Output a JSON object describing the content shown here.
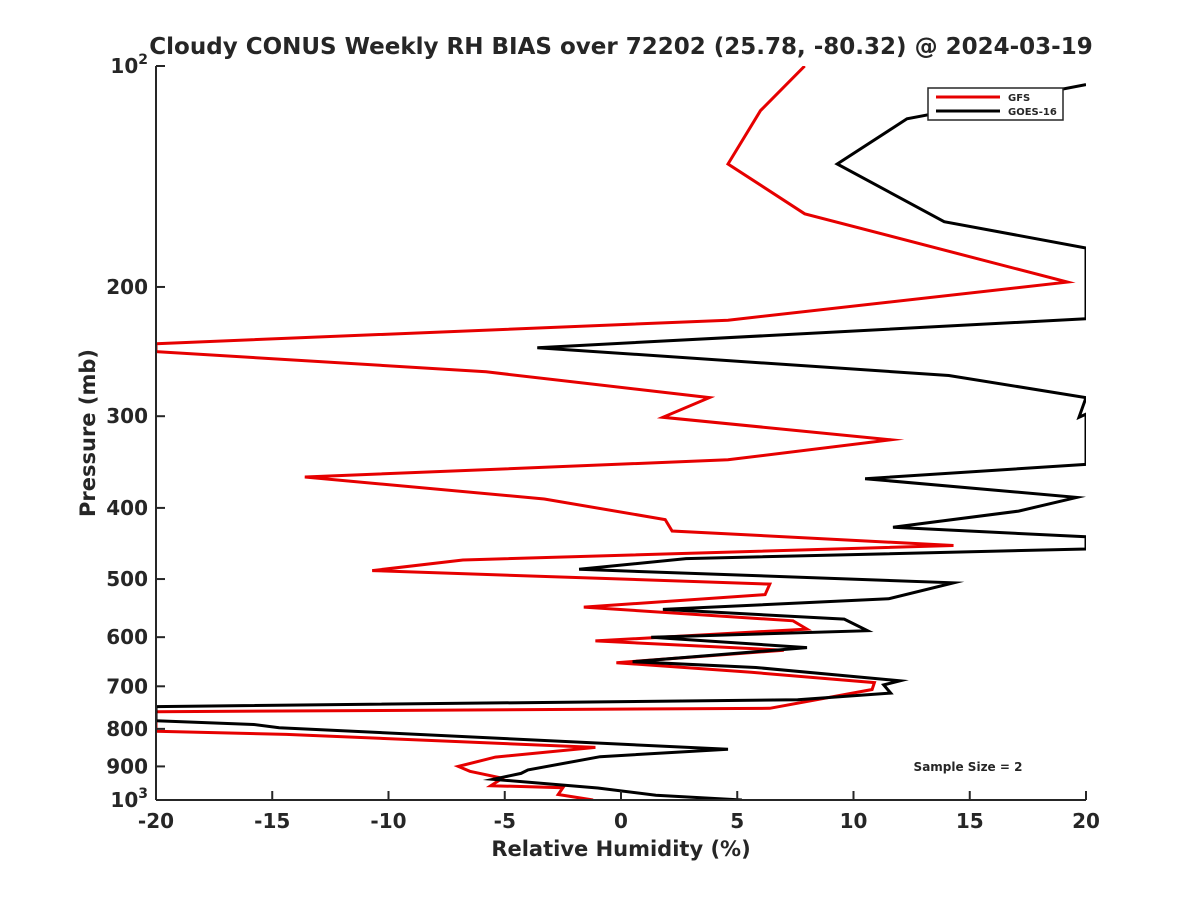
{
  "chart_data": {
    "type": "line",
    "title": "Cloudy CONUS Weekly RH BIAS over 72202 (25.78, -80.32) @ 2024-03-19",
    "xlabel": "Relative Humidity (%)",
    "ylabel": "Pressure (mb)",
    "xlim": [
      -20,
      20
    ],
    "ylim": [
      100,
      1000
    ],
    "y_scale": "log",
    "y_reversed": true,
    "x_ticks": [
      -20,
      -15,
      -10,
      -5,
      0,
      5,
      10,
      15,
      20
    ],
    "y_ticks": [
      {
        "value": 100,
        "base": "10",
        "exp": "2"
      },
      {
        "value": 200,
        "label": "200"
      },
      {
        "value": 300,
        "label": "300"
      },
      {
        "value": 400,
        "label": "400"
      },
      {
        "value": 500,
        "label": "500"
      },
      {
        "value": 600,
        "label": "600"
      },
      {
        "value": 700,
        "label": "700"
      },
      {
        "value": 800,
        "label": "800"
      },
      {
        "value": 900,
        "label": "900"
      },
      {
        "value": 1000,
        "base": "10",
        "exp": "3"
      }
    ],
    "grid": false,
    "legend_position": "top-right",
    "annotation": "Sample Size = 2",
    "series": [
      {
        "name": "GFS",
        "color": "#e60000",
        "points": [
          [
            7.9,
            100
          ],
          [
            6.0,
            115
          ],
          [
            4.6,
            136
          ],
          [
            7.9,
            159
          ],
          [
            19.2,
            197
          ],
          [
            4.6,
            222
          ],
          [
            -20.0,
            239
          ],
          [
            -20.0,
            245
          ],
          [
            -5.8,
            261
          ],
          [
            3.8,
            283
          ],
          [
            1.8,
            301
          ],
          [
            11.6,
            323
          ],
          [
            4.6,
            344
          ],
          [
            -13.6,
            363
          ],
          [
            -3.3,
            389
          ],
          [
            1.9,
            415
          ],
          [
            2.2,
            430
          ],
          [
            14.3,
            450
          ],
          [
            -6.8,
            471
          ],
          [
            -10.7,
            487
          ],
          [
            6.4,
            508
          ],
          [
            6.2,
            525
          ],
          [
            -1.6,
            546
          ],
          [
            7.4,
            570
          ],
          [
            8.0,
            585
          ],
          [
            -1.1,
            607
          ],
          [
            7.0,
            625
          ],
          [
            -0.2,
            650
          ],
          [
            5.6,
            670
          ],
          [
            10.9,
            692
          ],
          [
            10.8,
            707
          ],
          [
            6.4,
            750
          ],
          [
            -20.0,
            758
          ],
          [
            -20.0,
            785
          ],
          [
            -20.0,
            806
          ],
          [
            -14.4,
            814
          ],
          [
            -1.1,
            848
          ],
          [
            -5.4,
            874
          ],
          [
            -7.0,
            900
          ],
          [
            -6.5,
            914
          ],
          [
            -5.1,
            934
          ],
          [
            -5.6,
            956
          ],
          [
            -2.5,
            962
          ],
          [
            -2.7,
            983
          ],
          [
            -1.2,
            1000
          ]
        ]
      },
      {
        "name": "GOES-16",
        "color": "#000000",
        "points": [
          [
            20.0,
            106
          ],
          [
            14.8,
            114
          ],
          [
            12.3,
            118
          ],
          [
            9.3,
            136
          ],
          [
            13.9,
            163
          ],
          [
            20.0,
            177
          ],
          [
            20.0,
            221
          ],
          [
            -3.6,
            242
          ],
          [
            14.1,
            264
          ],
          [
            20.0,
            283
          ],
          [
            19.7,
            301
          ],
          [
            20.0,
            298
          ],
          [
            20.0,
            349
          ],
          [
            10.5,
            365
          ],
          [
            19.6,
            387
          ],
          [
            17.1,
            404
          ],
          [
            11.7,
            425
          ],
          [
            20.0,
            438
          ],
          [
            20.0,
            455
          ],
          [
            2.8,
            469
          ],
          [
            -1.8,
            485
          ],
          [
            14.3,
            506
          ],
          [
            11.5,
            532
          ],
          [
            1.8,
            550
          ],
          [
            9.6,
            567
          ],
          [
            10.6,
            588
          ],
          [
            1.3,
            600
          ],
          [
            8.0,
            620
          ],
          [
            0.5,
            648
          ],
          [
            5.8,
            660
          ],
          [
            12.0,
            688
          ],
          [
            11.3,
            697
          ],
          [
            11.6,
            715
          ],
          [
            7.6,
            730
          ],
          [
            -20.0,
            746
          ],
          [
            -20.0,
            780
          ],
          [
            -15.8,
            789
          ],
          [
            -14.7,
            797
          ],
          [
            4.6,
            853
          ],
          [
            -0.9,
            873
          ],
          [
            -4.0,
            910
          ],
          [
            -4.3,
            920
          ],
          [
            -5.5,
            937
          ],
          [
            -1.0,
            963
          ],
          [
            1.5,
            985
          ],
          [
            5.2,
            1000
          ]
        ]
      }
    ]
  }
}
